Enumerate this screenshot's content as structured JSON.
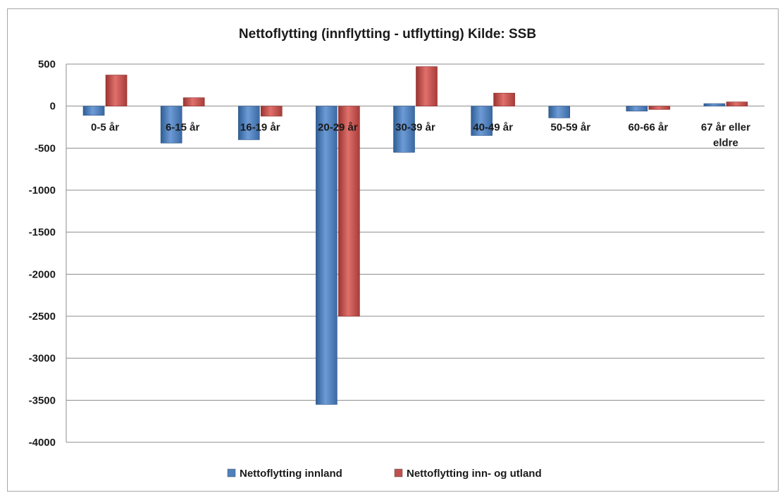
{
  "chart_data": {
    "type": "bar",
    "title": "Nettoflytting (innflytting - utflytting) Kilde: SSB",
    "categories": [
      "0-5 år",
      "6-15 år",
      "16-19 år",
      "20-29 år",
      "30-39 år",
      "40-49 år",
      "50-59 år",
      "60-66 år",
      "67 år eller eldre"
    ],
    "category_lines": [
      [
        "0-5 år"
      ],
      [
        "6-15 år"
      ],
      [
        "16-19 år"
      ],
      [
        "20-29 år"
      ],
      [
        "30-39 år"
      ],
      [
        "40-49 år"
      ],
      [
        "50-59 år"
      ],
      [
        "60-66 år"
      ],
      [
        "67 år eller",
        "eldre"
      ]
    ],
    "series": [
      {
        "name": "Nettoflytting innland",
        "color": "#4f81bd",
        "values": [
          -110,
          -440,
          -400,
          -3550,
          -550,
          -350,
          -140,
          -60,
          30
        ]
      },
      {
        "name": "Nettoflytting inn- og utland",
        "color": "#c0504d",
        "values": [
          370,
          100,
          -120,
          -2500,
          470,
          155,
          0,
          -40,
          50
        ]
      }
    ],
    "ylim": [
      -4000,
      500
    ],
    "yticks": [
      500,
      0,
      -500,
      -1000,
      -1500,
      -2000,
      -2500,
      -3000,
      -3500,
      -4000
    ],
    "ytick_labels": [
      "500",
      "0",
      "-500",
      "-1000",
      "-1500",
      "-2000",
      "-2500",
      "-3000",
      "-3500",
      "-4000"
    ],
    "xlabel": "",
    "ylabel": "",
    "grid": true,
    "legend": "bottom"
  }
}
